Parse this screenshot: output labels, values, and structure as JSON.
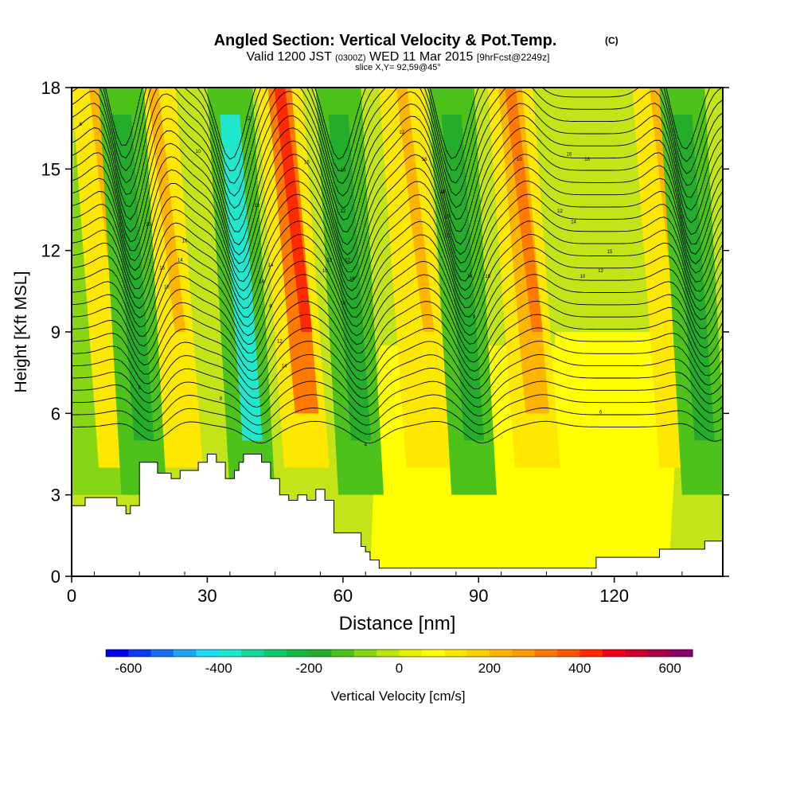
{
  "title": {
    "main": "Angled Section: Vertical Velocity & Pot.Temp.",
    "main_unit": "(C)",
    "valid_a": "Valid 1200 JST",
    "valid_b": "(0300Z)",
    "valid_c": "WED 11 Mar 2015",
    "valid_d": "[9hrFcst@2249z]",
    "slice": "slice X,Y= 92,59@45°"
  },
  "chart_data": {
    "type": "heatmap",
    "xlabel": "Distance [nm]",
    "ylabel": "Height [Kft MSL]",
    "xlim": [
      0,
      144
    ],
    "ylim": [
      0,
      18
    ],
    "x_ticks": [
      0,
      30,
      60,
      90,
      120
    ],
    "y_ticks": [
      0,
      3,
      6,
      9,
      12,
      15,
      18
    ],
    "grid": false,
    "colorbar": {
      "label": "Vertical Velocity [cm/s]",
      "ticks": [
        -600,
        -400,
        -200,
        0,
        200,
        400,
        600
      ],
      "bins": [
        -650,
        -600,
        -550,
        -500,
        -450,
        -400,
        -350,
        -300,
        -250,
        -200,
        -150,
        -100,
        -50,
        0,
        50,
        100,
        150,
        200,
        250,
        300,
        350,
        400,
        450,
        500,
        550,
        600,
        650
      ],
      "colors": [
        "#0000ee",
        "#0a3bef",
        "#1470f0",
        "#1ea6f2",
        "#22d8f4",
        "#1fe8cf",
        "#17d79a",
        "#13c86a",
        "#16b643",
        "#23ad2a",
        "#4cc21a",
        "#86d615",
        "#b9e612",
        "#e8f000",
        "#ffff00",
        "#ffe800",
        "#ffd000",
        "#ffb400",
        "#ff9a00",
        "#ff7a00",
        "#ff5500",
        "#ff2a00",
        "#f0001a",
        "#cc0030",
        "#a8004a",
        "#880066",
        "#680088"
      ]
    },
    "updraft_bands_x_nm": [
      11,
      24,
      52,
      79,
      103,
      135
    ],
    "downdraft_bands_x_nm": [
      16,
      40,
      64,
      89,
      140
    ],
    "terrain": {
      "x": [
        0,
        3,
        10,
        12,
        13,
        15,
        19,
        22,
        24,
        28,
        30,
        32,
        34,
        36,
        37,
        38,
        40,
        42,
        44,
        46,
        48,
        50,
        52,
        54,
        56,
        58,
        60,
        62,
        64,
        65,
        66,
        68,
        72,
        80,
        90,
        100,
        110,
        113,
        116,
        120,
        125,
        128,
        130,
        135,
        140,
        144
      ],
      "y": [
        2.6,
        2.9,
        2.6,
        2.3,
        2.6,
        4.2,
        3.8,
        3.6,
        3.9,
        4.2,
        4.5,
        4.2,
        3.6,
        3.9,
        4.2,
        4.5,
        4.5,
        4.2,
        3.6,
        3.0,
        2.8,
        3.0,
        2.8,
        3.2,
        2.8,
        1.6,
        1.6,
        1.6,
        1.1,
        0.9,
        0.6,
        0.3,
        0.3,
        0.3,
        0.3,
        0.3,
        0.3,
        0.3,
        0.7,
        0.7,
        0.7,
        0.7,
        1.0,
        1.0,
        1.3,
        1.3
      ]
    },
    "theta_labels": [
      {
        "x": 2,
        "y": 16.6,
        "text": "6"
      },
      {
        "x": 28,
        "y": 15.6,
        "text": "10"
      },
      {
        "x": 39,
        "y": 16.8,
        "text": "12"
      },
      {
        "x": 52,
        "y": 15.2,
        "text": "15"
      },
      {
        "x": 60,
        "y": 14.9,
        "text": "14"
      },
      {
        "x": 73,
        "y": 16.3,
        "text": "12"
      },
      {
        "x": 78,
        "y": 15.3,
        "text": "16"
      },
      {
        "x": 82,
        "y": 14.1,
        "text": "18"
      },
      {
        "x": 99,
        "y": 15.3,
        "text": "10"
      },
      {
        "x": 110,
        "y": 15.5,
        "text": "16"
      },
      {
        "x": 114,
        "y": 15.3,
        "text": "18"
      },
      {
        "x": 17,
        "y": 12.9,
        "text": "20"
      },
      {
        "x": 25,
        "y": 12.3,
        "text": "16"
      },
      {
        "x": 41,
        "y": 13.6,
        "text": "18"
      },
      {
        "x": 60,
        "y": 13.4,
        "text": "12"
      },
      {
        "x": 83,
        "y": 13.2,
        "text": "16"
      },
      {
        "x": 108,
        "y": 13.4,
        "text": "12"
      },
      {
        "x": 111,
        "y": 13.0,
        "text": "14"
      },
      {
        "x": 20,
        "y": 11.3,
        "text": "15"
      },
      {
        "x": 24,
        "y": 11.6,
        "text": "14"
      },
      {
        "x": 44,
        "y": 11.4,
        "text": "14"
      },
      {
        "x": 57,
        "y": 11.6,
        "text": "13"
      },
      {
        "x": 61,
        "y": 11.6,
        "text": "12"
      },
      {
        "x": 83,
        "y": 12.5,
        "text": "12"
      },
      {
        "x": 119,
        "y": 11.9,
        "text": "15"
      },
      {
        "x": 21,
        "y": 10.6,
        "text": "10"
      },
      {
        "x": 42,
        "y": 10.8,
        "text": "14"
      },
      {
        "x": 56,
        "y": 11.2,
        "text": "10"
      },
      {
        "x": 62,
        "y": 10.9,
        "text": "16"
      },
      {
        "x": 88,
        "y": 11.0,
        "text": "14"
      },
      {
        "x": 92,
        "y": 11.0,
        "text": "10"
      },
      {
        "x": 113,
        "y": 11.0,
        "text": "10"
      },
      {
        "x": 117,
        "y": 11.2,
        "text": "12"
      },
      {
        "x": 44,
        "y": 9.9,
        "text": "8"
      },
      {
        "x": 60,
        "y": 10.0,
        "text": "10"
      },
      {
        "x": 89,
        "y": 9.5,
        "text": "9"
      },
      {
        "x": 46,
        "y": 8.6,
        "text": "12"
      },
      {
        "x": 47,
        "y": 7.7,
        "text": "14"
      },
      {
        "x": 15,
        "y": 6.9,
        "text": "8"
      },
      {
        "x": 33,
        "y": 6.5,
        "text": "8"
      },
      {
        "x": 65,
        "y": 4.8,
        "text": "4"
      },
      {
        "x": 117,
        "y": 6.0,
        "text": "6"
      }
    ]
  }
}
